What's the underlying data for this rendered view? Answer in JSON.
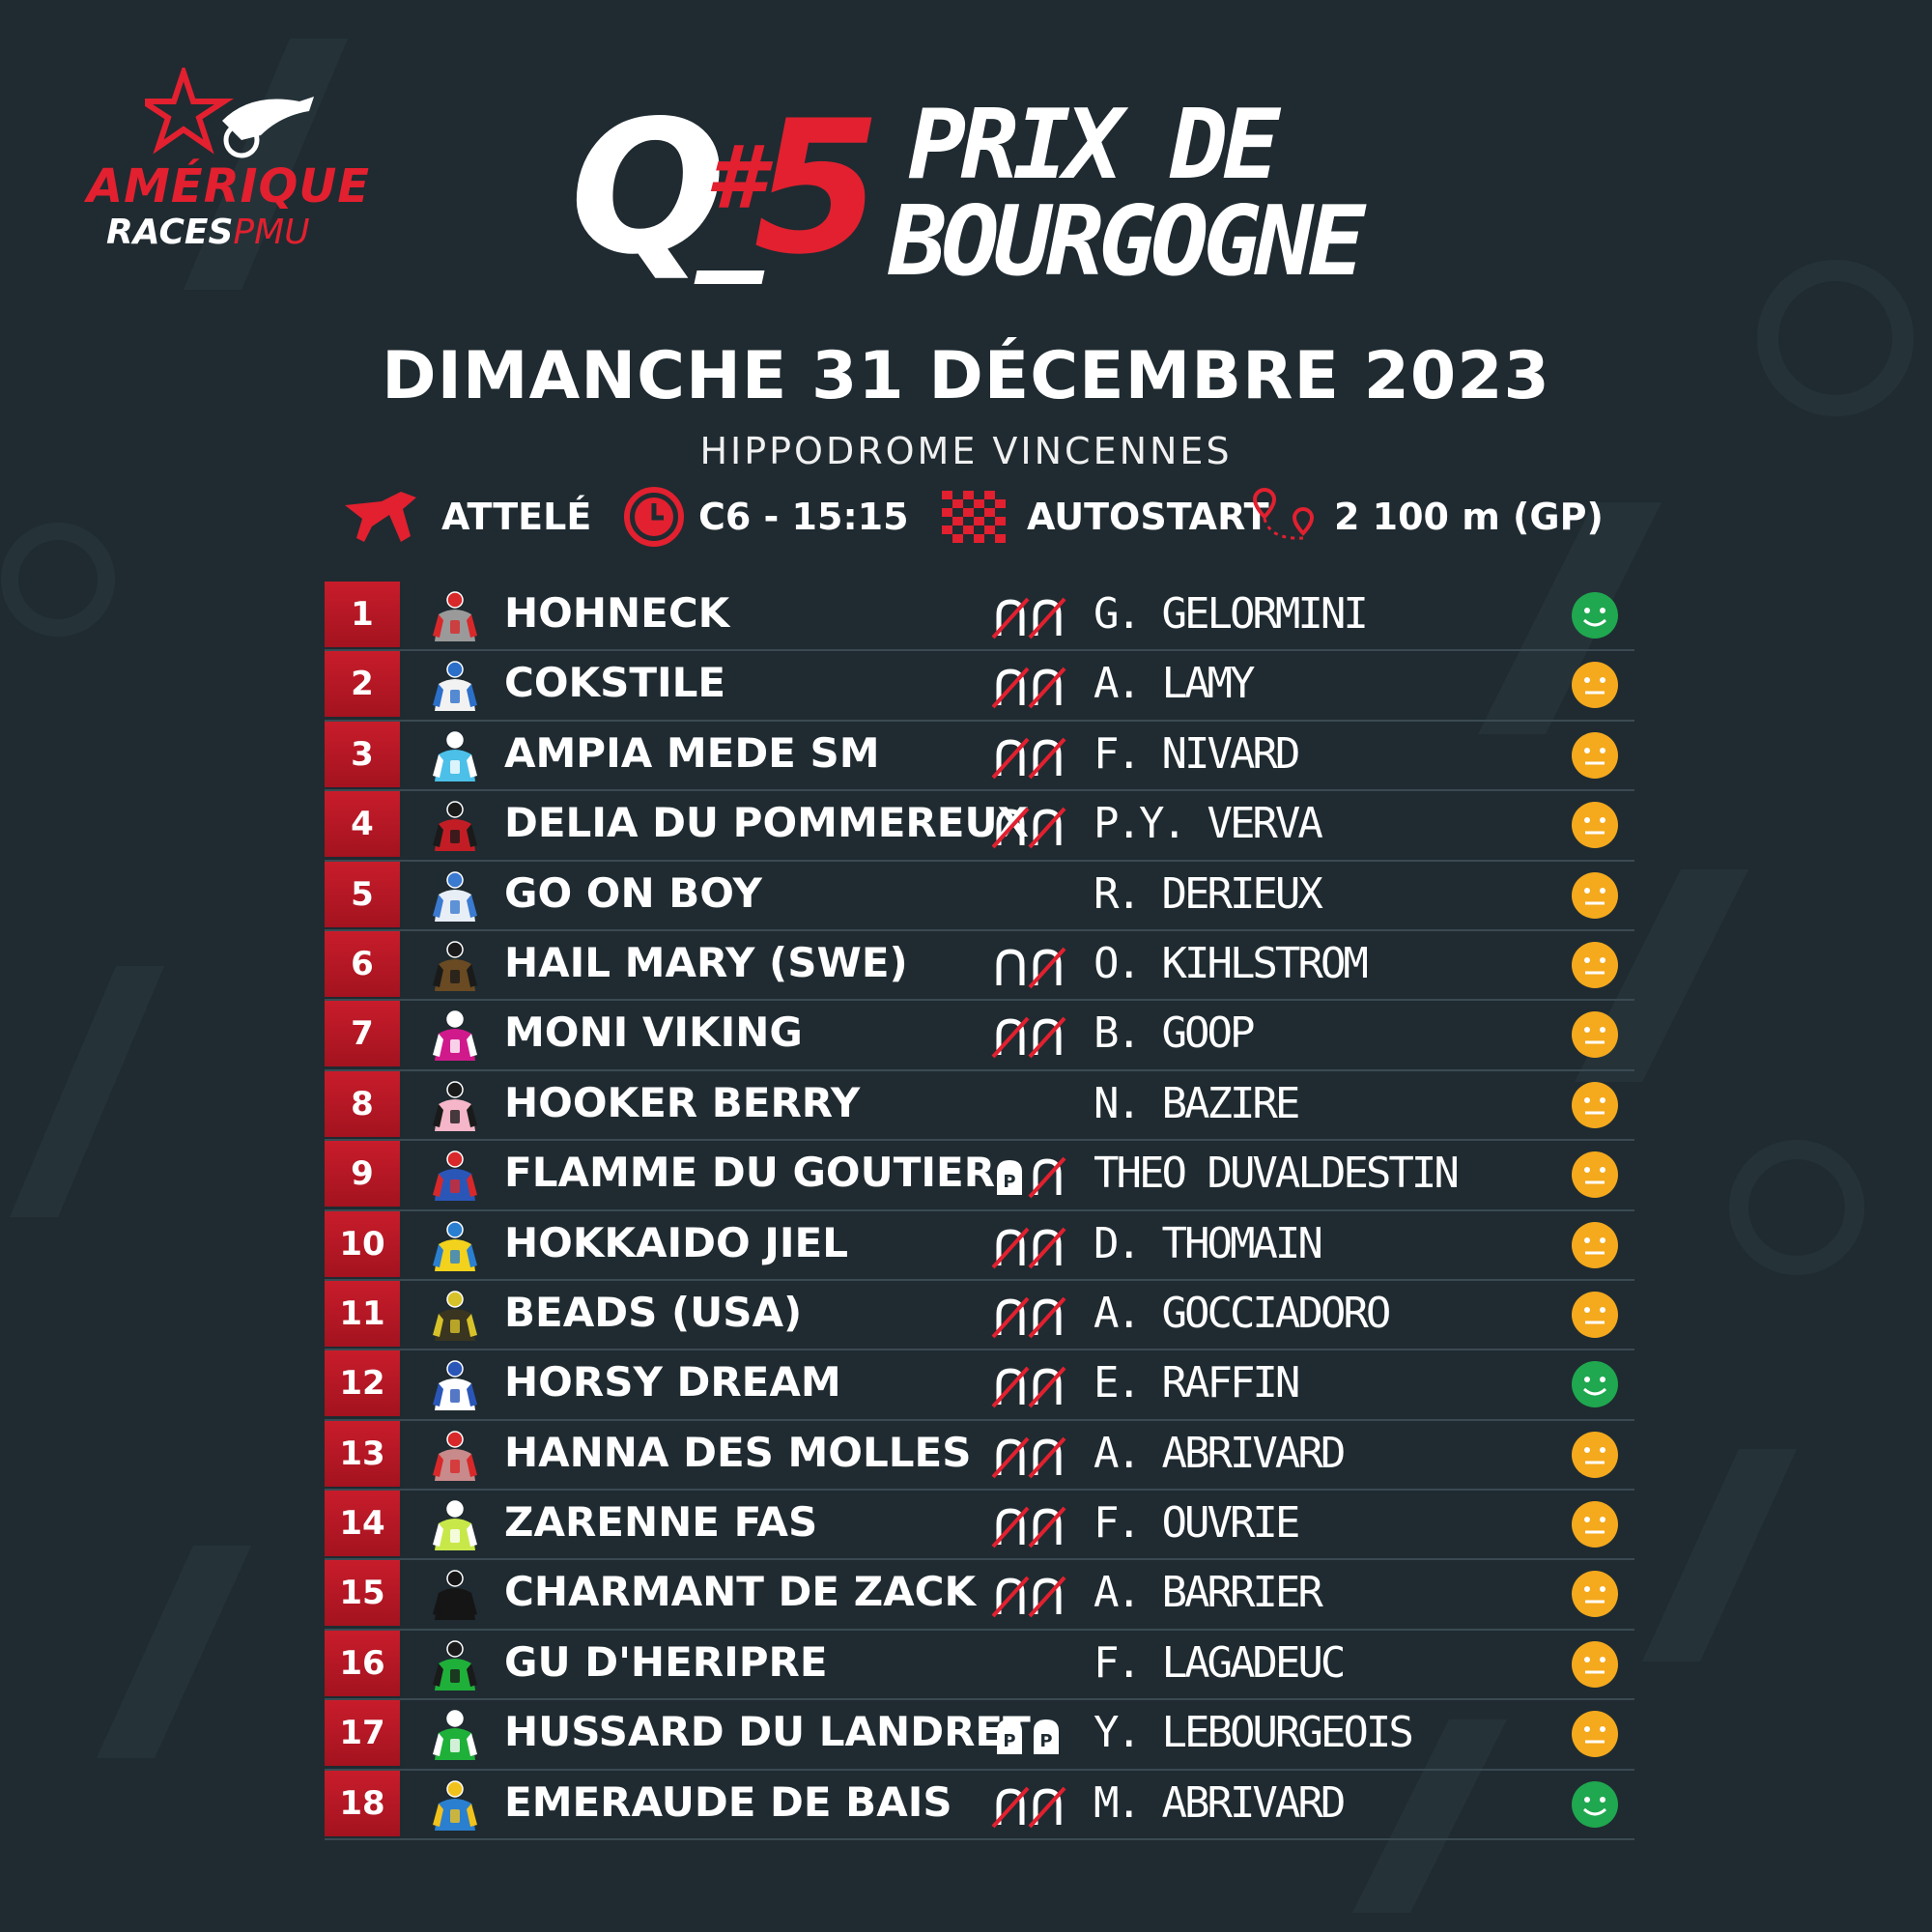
{
  "logo": {
    "line1": "AMÉRIQUE",
    "line2a": "RACES",
    "line2b": "PMU"
  },
  "header": {
    "q_letter": "Q",
    "q_hash": "#",
    "q_number": "5",
    "title_line1": "PRIX DE",
    "title_line2": "BOURGOGNE",
    "date": "DIMANCHE 31 DÉCEMBRE 2023",
    "venue": "HIPPODROME VINCENNES"
  },
  "info": {
    "discipline": "ATTELÉ",
    "course": "C6 - 15:15",
    "start": "AUTOSTART",
    "distance": "2 100 m (GP)"
  },
  "colors": {
    "accent": "#e2202f",
    "background": "#1f2b31",
    "green": "#1fa84f",
    "orange": "#f5a91c"
  },
  "runners": [
    {
      "num": "1",
      "horse": "HOHNECK",
      "driver": "G. GELORMINI",
      "shoes": [
        "barred",
        "barred"
      ],
      "mood": "green",
      "silk": [
        "#9a9a9a",
        "#d8282a"
      ]
    },
    {
      "num": "2",
      "horse": "COKSTILE",
      "driver": "A. LAMY",
      "shoes": [
        "barred",
        "barred"
      ],
      "mood": "orange",
      "silk": [
        "#f2f2f2",
        "#2b6fc9"
      ]
    },
    {
      "num": "3",
      "horse": "AMPIA MEDE SM",
      "driver": "F. NIVARD",
      "shoes": [
        "barred",
        "barred"
      ],
      "mood": "orange",
      "silk": [
        "#4cc0e8",
        "#ffffff"
      ]
    },
    {
      "num": "4",
      "horse": "DELIA DU POMMEREUX",
      "driver": "P.Y. VERVA",
      "shoes": [
        "barred",
        "barred"
      ],
      "mood": "orange",
      "silk": [
        "#c21d25",
        "#1a1a1a"
      ]
    },
    {
      "num": "5",
      "horse": "GO ON BOY",
      "driver": "R. DERIEUX",
      "shoes": [],
      "mood": "orange",
      "silk": [
        "#e8eef5",
        "#3a7ad0"
      ]
    },
    {
      "num": "6",
      "horse": "HAIL MARY (SWE)",
      "driver": "O. KIHLSTROM",
      "shoes": [
        "shod",
        "barred"
      ],
      "mood": "orange",
      "silk": [
        "#6a4a22",
        "#1a1a1a"
      ]
    },
    {
      "num": "7",
      "horse": "MONI VIKING",
      "driver": "B. GOOP",
      "shoes": [
        "barred",
        "barred"
      ],
      "mood": "orange",
      "silk": [
        "#d01a8c",
        "#ffffff"
      ]
    },
    {
      "num": "8",
      "horse": "HOOKER BERRY",
      "driver": "N. BAZIRE",
      "shoes": [],
      "mood": "orange",
      "silk": [
        "#f4b6c8",
        "#1a1a1a"
      ]
    },
    {
      "num": "9",
      "horse": "FLAMME DU GOUTIER",
      "driver": "THEO DUVALDESTIN",
      "shoes": [
        "plate",
        "barred"
      ],
      "mood": "orange",
      "silk": [
        "#2a56b8",
        "#d8282a"
      ]
    },
    {
      "num": "10",
      "horse": "HOKKAIDO JIEL",
      "driver": "D. THOMAIN",
      "shoes": [
        "barred",
        "barred"
      ],
      "mood": "orange",
      "silk": [
        "#f2d21c",
        "#2a7fd0"
      ]
    },
    {
      "num": "11",
      "horse": "BEADS (USA)",
      "driver": "A. GOCCIADORO",
      "shoes": [
        "barred",
        "barred"
      ],
      "mood": "orange",
      "silk": [
        "#3a3520",
        "#d8c22a"
      ]
    },
    {
      "num": "12",
      "horse": "HORSY DREAM",
      "driver": "E. RAFFIN",
      "shoes": [
        "barred",
        "barred"
      ],
      "mood": "green",
      "silk": [
        "#ffffff",
        "#2a56b8"
      ]
    },
    {
      "num": "13",
      "horse": "HANNA DES MOLLES",
      "driver": "A. ABRIVARD",
      "shoes": [
        "barred",
        "barred"
      ],
      "mood": "orange",
      "silk": [
        "#c88a8a",
        "#d8282a"
      ]
    },
    {
      "num": "14",
      "horse": "ZARENNE FAS",
      "driver": "F. OUVRIE",
      "shoes": [
        "barred",
        "barred"
      ],
      "mood": "orange",
      "silk": [
        "#c8e84a",
        "#ffffff"
      ]
    },
    {
      "num": "15",
      "horse": "CHARMANT DE ZACK",
      "driver": "A. BARRIER",
      "shoes": [
        "barred",
        "barred"
      ],
      "mood": "orange",
      "silk": [
        "#151515",
        "#151515"
      ]
    },
    {
      "num": "16",
      "horse": "GU D'HERIPRE",
      "driver": "F. LAGADEUC",
      "shoes": [],
      "mood": "orange",
      "silk": [
        "#1fb03a",
        "#1a1a1a"
      ]
    },
    {
      "num": "17",
      "horse": "HUSSARD DU LANDRET",
      "driver": "Y. LEBOURGEOIS",
      "shoes": [
        "plate",
        "plate"
      ],
      "mood": "orange",
      "silk": [
        "#1fb03a",
        "#ffffff"
      ]
    },
    {
      "num": "18",
      "horse": "EMERAUDE DE BAIS",
      "driver": "M. ABRIVARD",
      "shoes": [
        "barred",
        "barred"
      ],
      "mood": "green",
      "silk": [
        "#2a7fd0",
        "#f2c21c"
      ]
    }
  ]
}
